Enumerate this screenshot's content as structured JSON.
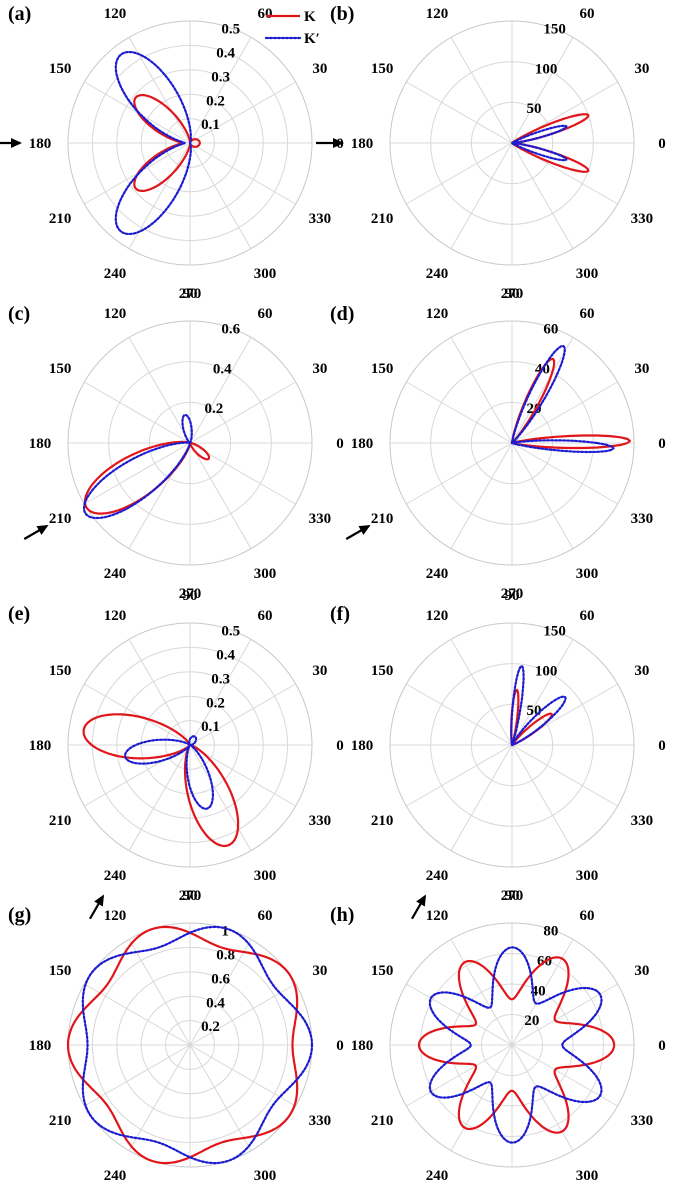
{
  "colors": {
    "K": "#e0161b",
    "Kp": "#1c1cd0",
    "grid": "#d8d8d8"
  },
  "legend": [
    {
      "label": "K",
      "style": "solid",
      "color": "#e0161b"
    },
    {
      "label": "K′",
      "style": "dotted",
      "color": "#1c1cd0"
    }
  ],
  "angle_labels": [
    "0",
    "30",
    "60",
    "90",
    "120",
    "150",
    "180",
    "210",
    "240",
    "270",
    "300",
    "330"
  ],
  "chart_data": [
    {
      "panel": "(a)",
      "type": "polar-line",
      "rmax": 0.5,
      "rticks": [
        "0.1",
        "0.2",
        "0.3",
        "0.4",
        "0.5"
      ],
      "incident_angle_deg": 180,
      "series": [
        {
          "name": "K",
          "style": "solid",
          "lobes": [
            {
              "theta": 140,
              "amp": 0.29,
              "width": 17
            },
            {
              "theta": 220,
              "amp": 0.29,
              "width": 17
            },
            {
              "theta": 0,
              "amp": 0.04,
              "width": 40
            }
          ]
        },
        {
          "name": "K′",
          "style": "dotted",
          "lobes": [
            {
              "theta": 128,
              "amp": 0.46,
              "width": 19
            },
            {
              "theta": 232,
              "amp": 0.46,
              "width": 19
            }
          ]
        }
      ]
    },
    {
      "panel": "(b)",
      "type": "polar-line",
      "rmax": 150,
      "rticks": [
        "50",
        "100",
        "150"
      ],
      "incident_angle_deg": 180,
      "series": [
        {
          "name": "K",
          "style": "solid",
          "lobes": [
            {
              "theta": 20,
              "amp": 100,
              "width": 6
            },
            {
              "theta": 340,
              "amp": 100,
              "width": 6
            }
          ]
        },
        {
          "name": "K′",
          "style": "dotted",
          "lobes": [
            {
              "theta": 17,
              "amp": 70,
              "width": 5
            },
            {
              "theta": 343,
              "amp": 70,
              "width": 5
            }
          ]
        }
      ]
    },
    {
      "panel": "(c)",
      "type": "polar-line",
      "rmax": 0.6,
      "rticks": [
        "0.2",
        "0.4",
        "0.6"
      ],
      "incident_angle_deg": 210,
      "series": [
        {
          "name": "K",
          "style": "solid",
          "lobes": [
            {
              "theta": 212,
              "amp": 0.6,
              "width": 17
            },
            {
              "theta": 320,
              "amp": 0.12,
              "width": 14
            }
          ]
        },
        {
          "name": "K′",
          "style": "dotted",
          "lobes": [
            {
              "theta": 214,
              "amp": 0.62,
              "width": 15
            },
            {
              "theta": 100,
              "amp": 0.14,
              "width": 14
            }
          ]
        }
      ]
    },
    {
      "panel": "(d)",
      "type": "polar-line",
      "rmax": 60,
      "rticks": [
        "20",
        "40",
        "60"
      ],
      "incident_angle_deg": 210,
      "series": [
        {
          "name": "K",
          "style": "solid",
          "lobes": [
            {
              "theta": 64,
              "amp": 46,
              "width": 7
            },
            {
              "theta": 1,
              "amp": 58,
              "width": 5
            }
          ]
        },
        {
          "name": "K′",
          "style": "dotted",
          "lobes": [
            {
              "theta": 62,
              "amp": 54,
              "width": 7
            },
            {
              "theta": 357,
              "amp": 50,
              "width": 5
            }
          ]
        }
      ]
    },
    {
      "panel": "(e)",
      "type": "polar-line",
      "rmax": 0.5,
      "rticks": [
        "0.1",
        "0.2",
        "0.3",
        "0.4",
        "0.5"
      ],
      "incident_angle_deg": 240,
      "series": [
        {
          "name": "K",
          "style": "solid",
          "lobes": [
            {
              "theta": 172,
              "amp": 0.44,
              "width": 19
            },
            {
              "theta": 291,
              "amp": 0.44,
              "width": 19
            }
          ]
        },
        {
          "name": "K′",
          "style": "dotted",
          "lobes": [
            {
              "theta": 190,
              "amp": 0.27,
              "width": 16
            },
            {
              "theta": 285,
              "amp": 0.27,
              "width": 16
            },
            {
              "theta": 60,
              "amp": 0.04,
              "width": 30
            }
          ]
        }
      ]
    },
    {
      "panel": "(f)",
      "type": "polar-line",
      "rmax": 150,
      "rticks": [
        "50",
        "100",
        "150"
      ],
      "incident_angle_deg": 240,
      "series": [
        {
          "name": "K",
          "style": "solid",
          "lobes": [
            {
              "theta": 85,
              "amp": 68,
              "width": 5
            },
            {
              "theta": 38,
              "amp": 62,
              "width": 7
            }
          ]
        },
        {
          "name": "K′",
          "style": "dotted",
          "lobes": [
            {
              "theta": 83,
              "amp": 98,
              "width": 5
            },
            {
              "theta": 42,
              "amp": 88,
              "width": 8
            }
          ]
        }
      ]
    },
    {
      "panel": "(g)",
      "type": "polar-line",
      "rmax": 1,
      "rticks": [
        "0.2",
        "0.4",
        "0.6",
        "0.8",
        "1"
      ],
      "incident_angle_deg": null,
      "series": [
        {
          "name": "K",
          "style": "solid",
          "harmonic": {
            "base": 0.92,
            "amp": 0.08,
            "n": 5,
            "phase": 180
          }
        },
        {
          "name": "K′",
          "style": "dotted",
          "harmonic": {
            "base": 0.92,
            "amp": 0.08,
            "n": 5,
            "phase": 0
          }
        }
      ]
    },
    {
      "panel": "(h)",
      "type": "polar-line",
      "rmax": 80,
      "rticks": [
        "20",
        "40",
        "60",
        "80"
      ],
      "incident_angle_deg": null,
      "series": [
        {
          "name": "K",
          "style": "solid",
          "harmonic": {
            "base": 47,
            "amp": 17,
            "n": 6,
            "phase": 0,
            "tilt": 3
          }
        },
        {
          "name": "K′",
          "style": "dotted",
          "harmonic": {
            "base": 47,
            "amp": 17,
            "n": 6,
            "phase": 30,
            "tilt": 3
          }
        }
      ]
    }
  ]
}
